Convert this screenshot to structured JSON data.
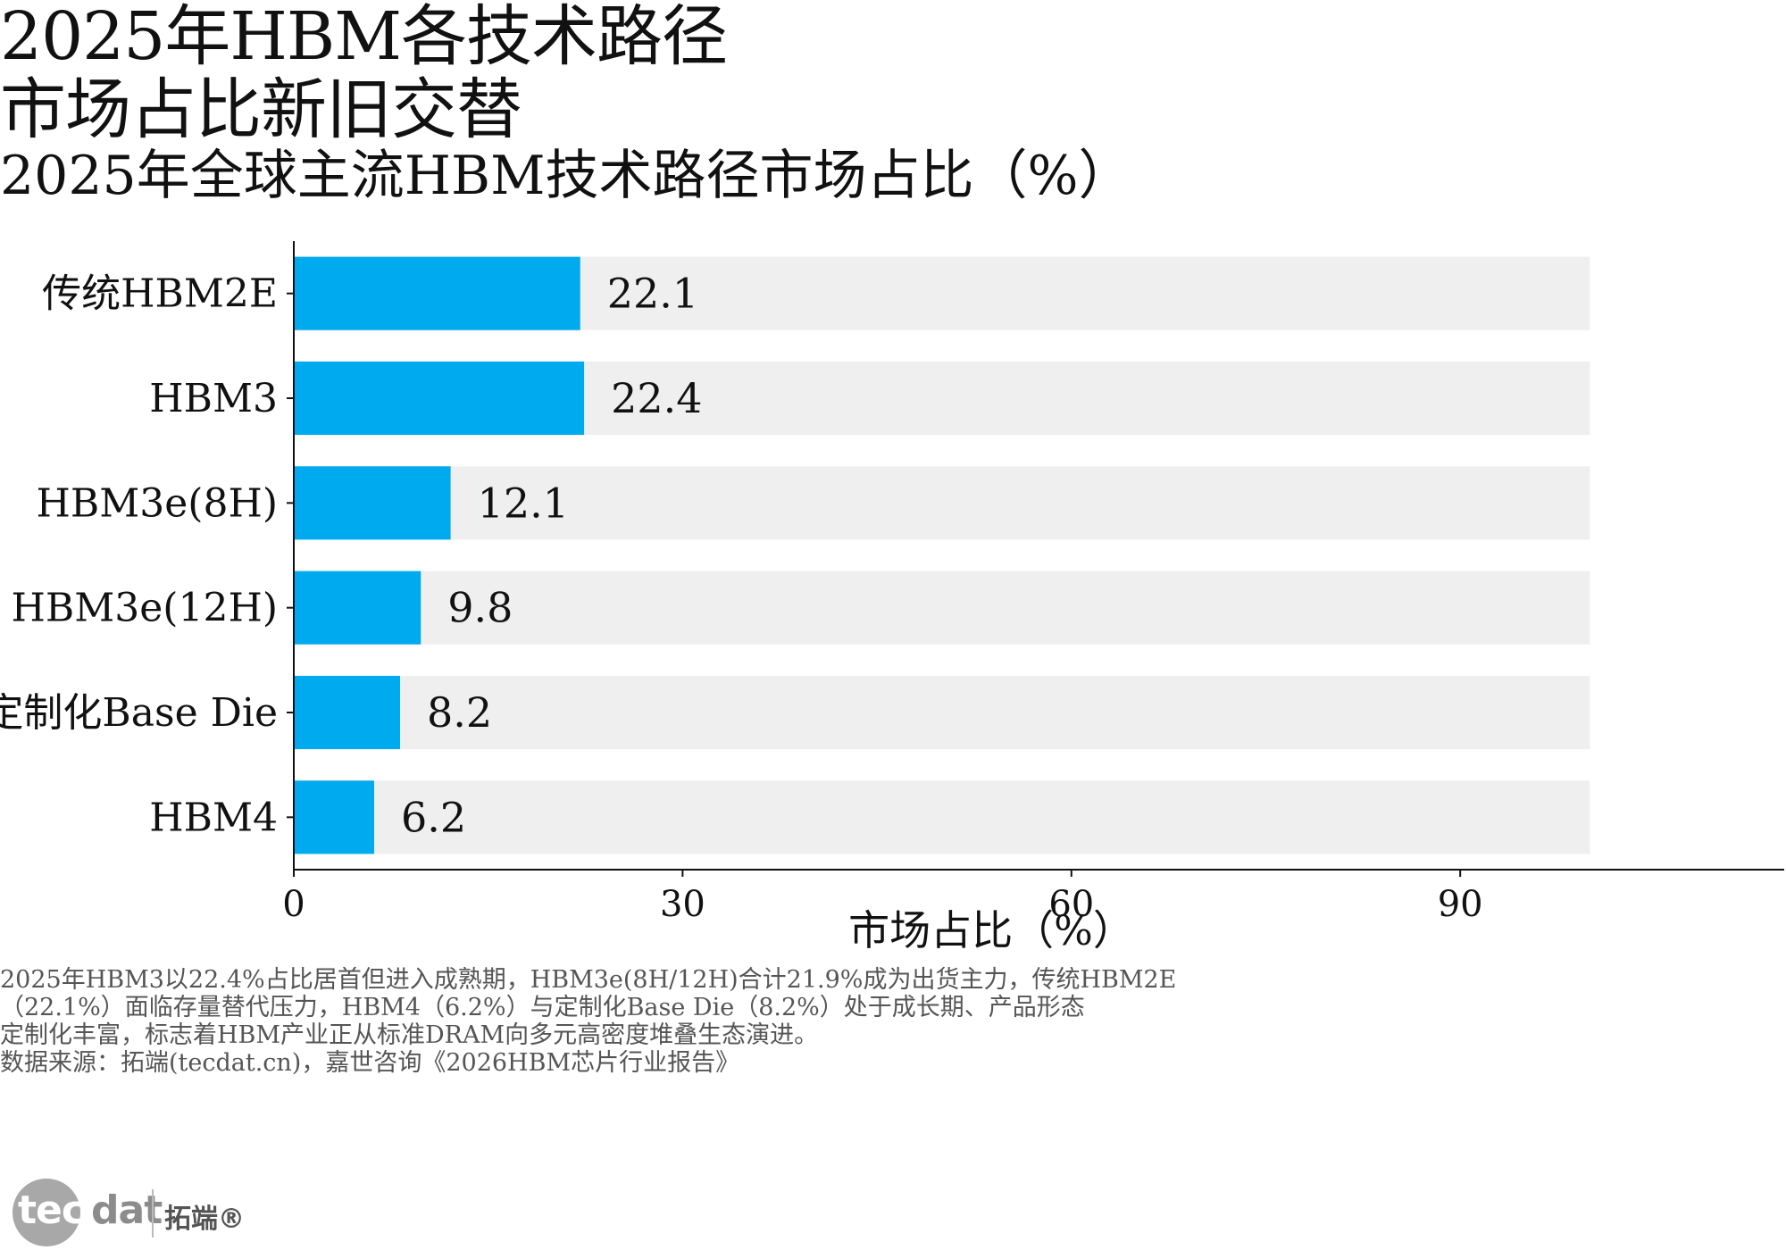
{
  "header": {
    "title_line1": "2025年HBM各技术路径",
    "title_line2": "市场占比新旧交替",
    "subtitle": "2025年全球主流HBM技术路径市场占比（%）"
  },
  "chart_data": {
    "type": "bar",
    "orientation": "horizontal",
    "categories": [
      "传统HBM2E",
      "HBM3",
      "HBM3e(8H)",
      "HBM3e(12H)",
      "定制化Base Die",
      "HBM4"
    ],
    "values": [
      22.1,
      22.4,
      12.1,
      9.8,
      8.2,
      6.2
    ],
    "value_labels": [
      "22.1",
      "22.4",
      "12.1",
      "9.8",
      "8.2",
      "6.2"
    ],
    "background_track_value": 100,
    "xlim": [
      0,
      115
    ],
    "xticks": [
      0,
      30,
      60,
      90
    ],
    "xlabel": "市场占比（%）",
    "bar_color": "#00AAEE",
    "track_color": "#EFEFEF",
    "grid": false,
    "legend": "none"
  },
  "footer": {
    "note_lines": [
      "2025年HBM3以22.4%占比居首但进入成熟期，HBM3e(8H/12H)合计21.9%成为出货主力，传统HBM2E",
      "（22.1%）面临存量替代压力，HBM4（6.2%）与定制化Base Die（8.2%）处于成长期、产品形态",
      "定制化丰富，标志着HBM产业正从标准DRAM向多元高密度堆叠生态演进。",
      "数据来源：拓端(tecdat.cn)，嘉世咨询《2026HBM芯片行业报告》"
    ],
    "logo_tec": "tec",
    "logo_dat": "dat",
    "logo_cn": "拓端®"
  }
}
